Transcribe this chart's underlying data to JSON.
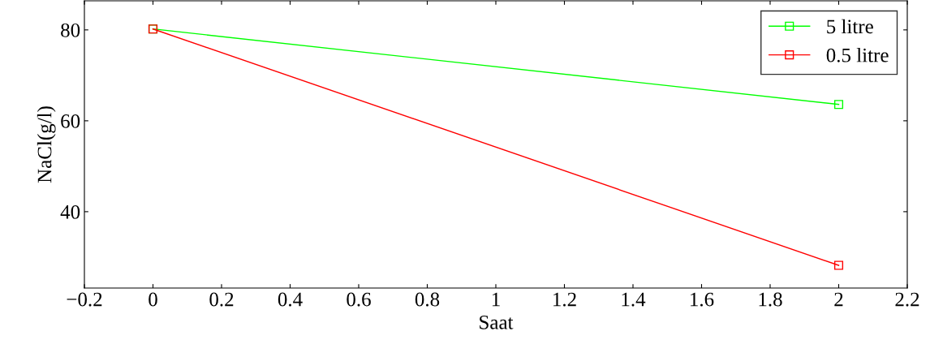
{
  "chart_data": {
    "type": "line",
    "xlabel": "Saat",
    "ylabel": "NaCl(g/l)",
    "x": [
      0,
      2
    ],
    "series": [
      {
        "name": "5 litre",
        "color": "#00ff00",
        "values": [
          80.2,
          63.6
        ]
      },
      {
        "name": "0.5 litre",
        "color": "#ff0000",
        "values": [
          80.2,
          28.2
        ]
      }
    ],
    "xlim": [
      -0.2,
      2.2
    ],
    "xticks": [
      {
        "value": -0.2,
        "label": "−0.2"
      },
      0,
      0.2,
      0.4,
      0.6,
      0.8,
      1,
      1.2,
      1.4,
      1.6,
      1.8,
      2,
      2.2
    ],
    "ylim": [
      23.2,
      86.4
    ],
    "yticks": [
      40,
      60,
      80
    ],
    "grid": false,
    "legend": "top right",
    "marker": "square",
    "line_style": "solid"
  }
}
